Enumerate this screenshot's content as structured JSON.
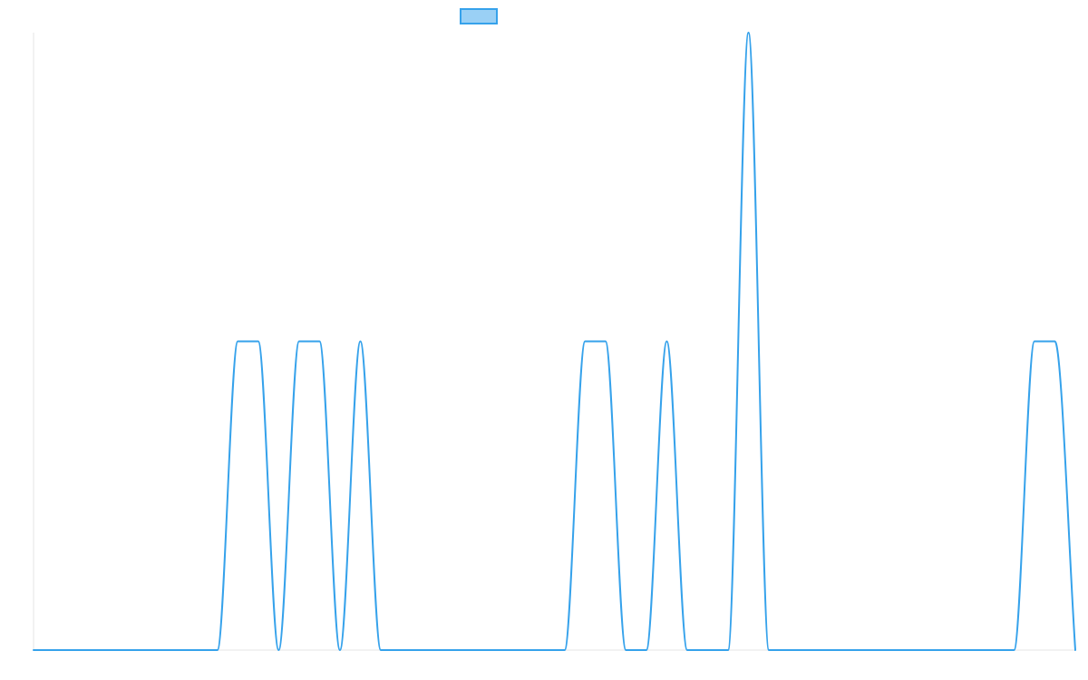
{
  "chart_data": {
    "type": "line",
    "title": "",
    "xlabel": "",
    "ylabel": "",
    "x": [
      0,
      1,
      2,
      3,
      4,
      5,
      6,
      7,
      8,
      9,
      10,
      11,
      12,
      13,
      14,
      15,
      16,
      17,
      18,
      19,
      20,
      21,
      22,
      23,
      24,
      25,
      26,
      27,
      28,
      29,
      30,
      31,
      32,
      33,
      34,
      35,
      36,
      37,
      38,
      39,
      40,
      41,
      42,
      43,
      44,
      45,
      46,
      47,
      48,
      49,
      50,
      51
    ],
    "ylim": [
      0,
      2
    ],
    "grid": false,
    "legend": "top-center",
    "series": [
      {
        "name": "",
        "color": "#36a2eb",
        "fill": "#9ad0f5",
        "values": [
          0,
          0,
          0,
          0,
          0,
          0,
          0,
          0,
          0,
          0,
          1,
          1,
          0,
          1,
          1,
          0,
          1,
          0,
          0,
          0,
          0,
          0,
          0,
          0,
          0,
          0,
          0,
          1,
          1,
          0,
          0,
          1,
          0,
          0,
          0,
          2,
          0,
          0,
          0,
          0,
          0,
          0,
          0,
          0,
          0,
          0,
          0,
          0,
          0,
          1,
          1,
          0
        ]
      }
    ]
  }
}
